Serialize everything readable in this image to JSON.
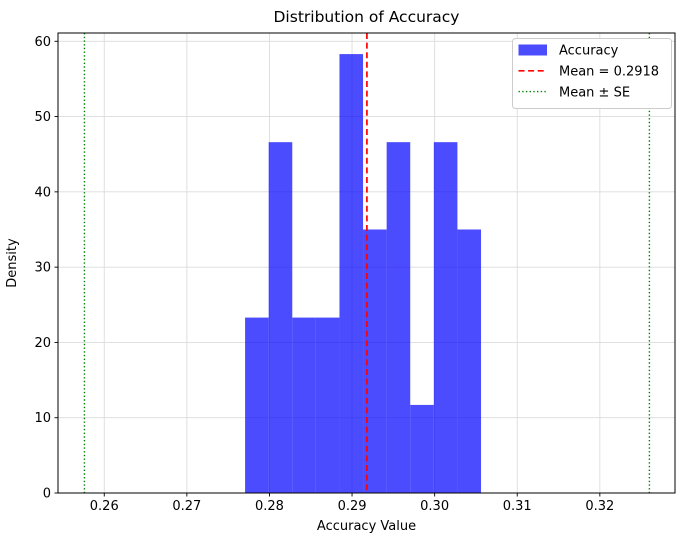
{
  "chart_data": {
    "type": "histogram",
    "title": "Distribution of Accuracy",
    "xlabel": "Accuracy Value",
    "ylabel": "Density",
    "xlim": [
      0.2544,
      0.3291
    ],
    "ylim": [
      0,
      61.1
    ],
    "xticks": {
      "values": [
        0.26,
        0.27,
        0.28,
        0.29,
        0.3,
        0.31,
        0.32
      ],
      "labels": [
        "0.26",
        "0.27",
        "0.28",
        "0.29",
        "0.30",
        "0.31",
        "0.32"
      ]
    },
    "yticks": {
      "values": [
        0,
        10,
        20,
        30,
        40,
        50,
        60
      ],
      "labels": [
        "0",
        "10",
        "20",
        "30",
        "40",
        "50",
        "60"
      ]
    },
    "bins": {
      "start": 0.27705,
      "bin_width": 0.0028565,
      "counts": [
        2,
        4,
        2,
        2,
        5,
        3,
        4,
        1,
        4,
        3
      ],
      "densities": [
        23.3,
        46.6,
        23.3,
        23.3,
        58.3,
        35.0,
        46.6,
        11.7,
        46.6,
        35.0
      ]
    },
    "mean": 0.2918,
    "se": 0.0342,
    "se_lines": [
      0.2576,
      0.326
    ],
    "grid": true,
    "legend": {
      "position": "upper right",
      "entries": [
        {
          "handle": "patch",
          "label": "Accuracy"
        },
        {
          "handle": "dashed-line",
          "label": "Mean = 0.2918"
        },
        {
          "handle": "dotted-line",
          "label": "Mean ± SE"
        }
      ]
    },
    "colors": {
      "bar": "#0000ff",
      "bar_alpha": 0.7,
      "mean_line": "#ff0000",
      "se_line": "#008000",
      "grid": "#dcdcdc",
      "axis": "#000000",
      "legend_border": "#cccccc",
      "background": "#ffffff"
    }
  }
}
